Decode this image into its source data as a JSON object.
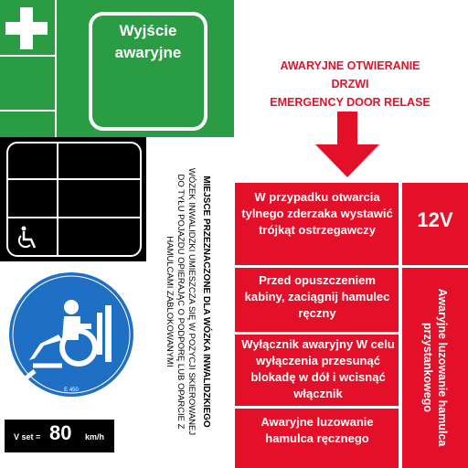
{
  "exit_sign": {
    "label": "Wyjście awaryjne"
  },
  "wheelchair_area": {
    "title": "MIEJSCE PRZEZNACZONE DLA WÓZKA INWALIDZKIEGO",
    "body": "WÓZEK INWALIDZKI UMIESZCZA SIĘ W POZYCJI SKIEROWANEJ DO TYŁU POJAZDU OPIERAJĄC O PODPORĘ LUB OPARCIE Z HAMULCAMI ZABLOKOWANYMI"
  },
  "speed": {
    "label": "V set =",
    "value": "80",
    "unit": "km/h"
  },
  "emergency_header": {
    "line1": "AWARYJNE OTWIERANIE",
    "line2": "DRZWI",
    "line3": "EMERGENCY DOOR RELASE"
  },
  "red_panel": {
    "item1": "W przypadku otwarcia tylnego zderzaka wystawić trójkąt ostrzegawczy",
    "item2": "Przed opuszczeniem kabiny, zaciągnij hamulec ręczny",
    "item3": "Wyłącznik awaryjny W celu wyłączenia przesunąć blokadę w dół i wcisnąć włącznik",
    "item4": "Awaryjne luzowanie hamulca ręcznego",
    "voltage": "12V",
    "vertical": "Awaryjne luzowanie hamulca przystankowego"
  },
  "colors": {
    "green": "#2a9d44",
    "red": "#e4102a",
    "blue": "#1f6fc4",
    "black": "#000000"
  }
}
